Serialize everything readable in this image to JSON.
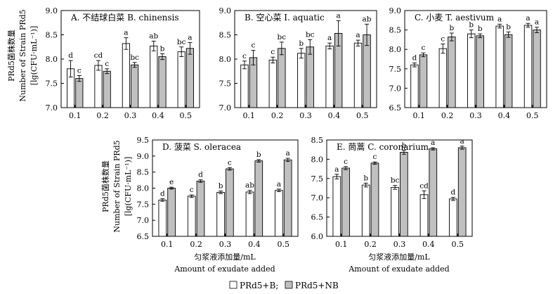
{
  "y_axis_label": {
    "cn": "PRd5菌株数量",
    "en": "Number of Strain PRd5",
    "unit": "[lg(CFU·mL⁻¹)]"
  },
  "x_axis_label": {
    "cn": "匀浆液添加量/mL",
    "en": "Amount of exudate added"
  },
  "legend": [
    {
      "label": "PRd5+B;",
      "color": "#ffffff"
    },
    {
      "label": "PRd5+NB",
      "color": "#c0c0c0"
    }
  ],
  "chart_data": [
    {
      "type": "bar",
      "title": "A. 不结球白菜 B. chinensis",
      "categories": [
        "0.1",
        "0.2",
        "0.3",
        "0.4",
        "0.5"
      ],
      "ylim": [
        7.0,
        9.0
      ],
      "yticks": [
        "7.0",
        "7.5",
        "8.0",
        "8.5",
        "9.0"
      ],
      "series": [
        {
          "name": "PRd5+B",
          "values": [
            7.8,
            7.87,
            8.32,
            8.27,
            8.15
          ],
          "errors": [
            0.17,
            0.1,
            0.12,
            0.1,
            0.1
          ],
          "letters": [
            "d",
            "cd",
            "a",
            "ab",
            "bc"
          ]
        },
        {
          "name": "PRd5+NB",
          "values": [
            7.6,
            7.75,
            7.88,
            8.05,
            8.22
          ],
          "errors": [
            0.06,
            0.05,
            0.05,
            0.06,
            0.12
          ],
          "letters": [
            "c",
            "c",
            "bc",
            "b",
            "a"
          ]
        }
      ]
    },
    {
      "type": "bar",
      "title": "B. 空心菜 I. aquatic",
      "categories": [
        "0.1",
        "0.2",
        "0.3",
        "0.4",
        "0.5"
      ],
      "ylim": [
        7.0,
        9.0
      ],
      "yticks": [
        "7.0",
        "7.5",
        "8.0",
        "8.5",
        "9.0"
      ],
      "series": [
        {
          "name": "PRd5+B",
          "values": [
            7.88,
            7.98,
            8.12,
            8.27,
            8.33
          ],
          "errors": [
            0.08,
            0.06,
            0.1,
            0.06,
            0.06
          ],
          "letters": [
            "c",
            "c",
            "b",
            "a",
            "a"
          ]
        },
        {
          "name": "PRd5+NB",
          "values": [
            8.03,
            8.22,
            8.25,
            8.53,
            8.5
          ],
          "errors": [
            0.15,
            0.13,
            0.15,
            0.26,
            0.22
          ],
          "letters": [
            "c",
            "bc",
            "bc",
            "a",
            "ab"
          ]
        }
      ]
    },
    {
      "type": "bar",
      "title": "C. 小麦 T. aestivum",
      "categories": [
        "0.1",
        "0.2",
        "0.3",
        "0.4",
        "0.5"
      ],
      "ylim": [
        6.5,
        9.0
      ],
      "yticks": [
        "6.5",
        "7.0",
        "7.5",
        "8.0",
        "8.5",
        "9.0"
      ],
      "series": [
        {
          "name": "PRd5+B",
          "values": [
            7.6,
            8.02,
            8.4,
            8.6,
            8.62
          ],
          "errors": [
            0.05,
            0.12,
            0.1,
            0.05,
            0.05
          ],
          "letters": [
            "d",
            "c",
            "b",
            "a",
            "a"
          ]
        },
        {
          "name": "PRd5+NB",
          "values": [
            7.86,
            8.32,
            8.35,
            8.38,
            8.5
          ],
          "errors": [
            0.05,
            0.1,
            0.05,
            0.07,
            0.07
          ],
          "letters": [
            "c",
            "b",
            "b",
            "b",
            "a"
          ]
        }
      ]
    },
    {
      "type": "bar",
      "title": "D. 菠菜 S. oleracea",
      "categories": [
        "0.1",
        "0.2",
        "0.3",
        "0.4",
        "0.5"
      ],
      "ylim": [
        6.5,
        9.5
      ],
      "yticks": [
        "6.5",
        "7.0",
        "7.5",
        "8.0",
        "8.5",
        "9.0",
        "9.5"
      ],
      "series": [
        {
          "name": "PRd5+B",
          "values": [
            7.63,
            7.75,
            7.87,
            7.88,
            7.93
          ],
          "errors": [
            0.04,
            0.04,
            0.04,
            0.05,
            0.04
          ],
          "letters": [
            "d",
            "c",
            "b",
            "ab",
            "a"
          ]
        },
        {
          "name": "PRd5+NB",
          "values": [
            8.0,
            8.22,
            8.6,
            8.85,
            8.88
          ],
          "errors": [
            0.03,
            0.04,
            0.04,
            0.04,
            0.05
          ],
          "letters": [
            "e",
            "d",
            "c",
            "b",
            "a"
          ]
        }
      ]
    },
    {
      "type": "bar",
      "title": "E. 茼蒿 C. coronarium",
      "categories": [
        "0.1",
        "0.2",
        "0.3",
        "0.4",
        "0.5"
      ],
      "ylim": [
        6.0,
        8.5
      ],
      "yticks": [
        "6.0",
        "6.5",
        "7.0",
        "7.5",
        "8.0",
        "8.5"
      ],
      "series": [
        {
          "name": "PRd5+B",
          "values": [
            7.55,
            7.33,
            7.27,
            7.08,
            6.97
          ],
          "errors": [
            0.06,
            0.05,
            0.05,
            0.1,
            0.04
          ],
          "letters": [
            "a",
            "b",
            "bc",
            "cd",
            "d"
          ]
        },
        {
          "name": "PRd5+NB",
          "values": [
            7.77,
            7.9,
            8.18,
            8.27,
            8.3
          ],
          "errors": [
            0.04,
            0.03,
            0.05,
            0.03,
            0.04
          ],
          "letters": [
            "c",
            "c",
            "b",
            "a",
            "a"
          ]
        }
      ]
    }
  ]
}
